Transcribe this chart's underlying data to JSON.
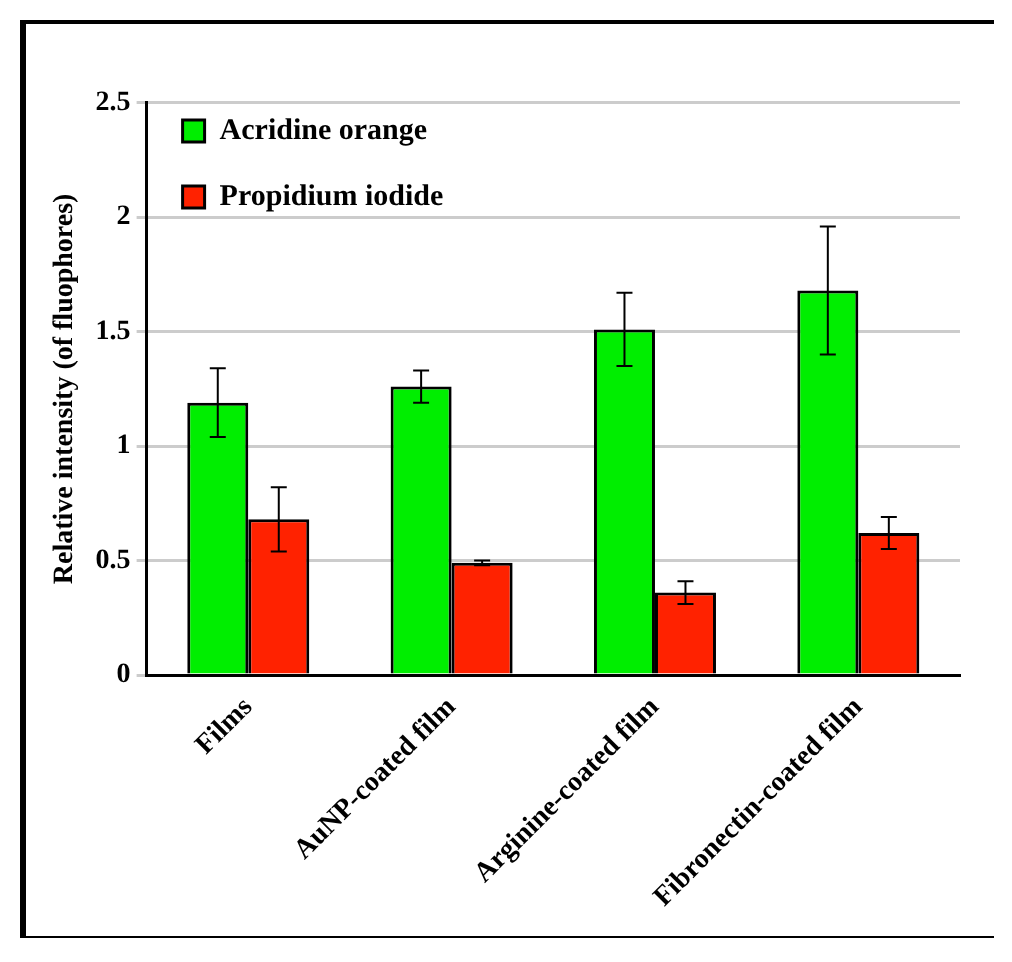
{
  "chart_data": {
    "type": "bar",
    "ylabel": "Relative intensity (of fluophores)",
    "categories": [
      "Films",
      "AuNP-coated film",
      "Arginine-coated film",
      "Fibronectin-coated film"
    ],
    "series": [
      {
        "name": "Acridine orange",
        "color": "#00ee00",
        "values": [
          1.19,
          1.26,
          1.51,
          1.68
        ],
        "errors": [
          0.15,
          0.07,
          0.16,
          0.28
        ]
      },
      {
        "name": "Propidium iodide",
        "color": "#ff2200",
        "values": [
          0.68,
          0.49,
          0.36,
          0.62
        ],
        "errors": [
          0.14,
          0.01,
          0.05,
          0.07
        ]
      }
    ],
    "ylim": [
      0,
      2.5
    ],
    "yticks": [
      0,
      0.5,
      1,
      1.5,
      2,
      2.5
    ],
    "grid": "y",
    "legend": "top left"
  }
}
